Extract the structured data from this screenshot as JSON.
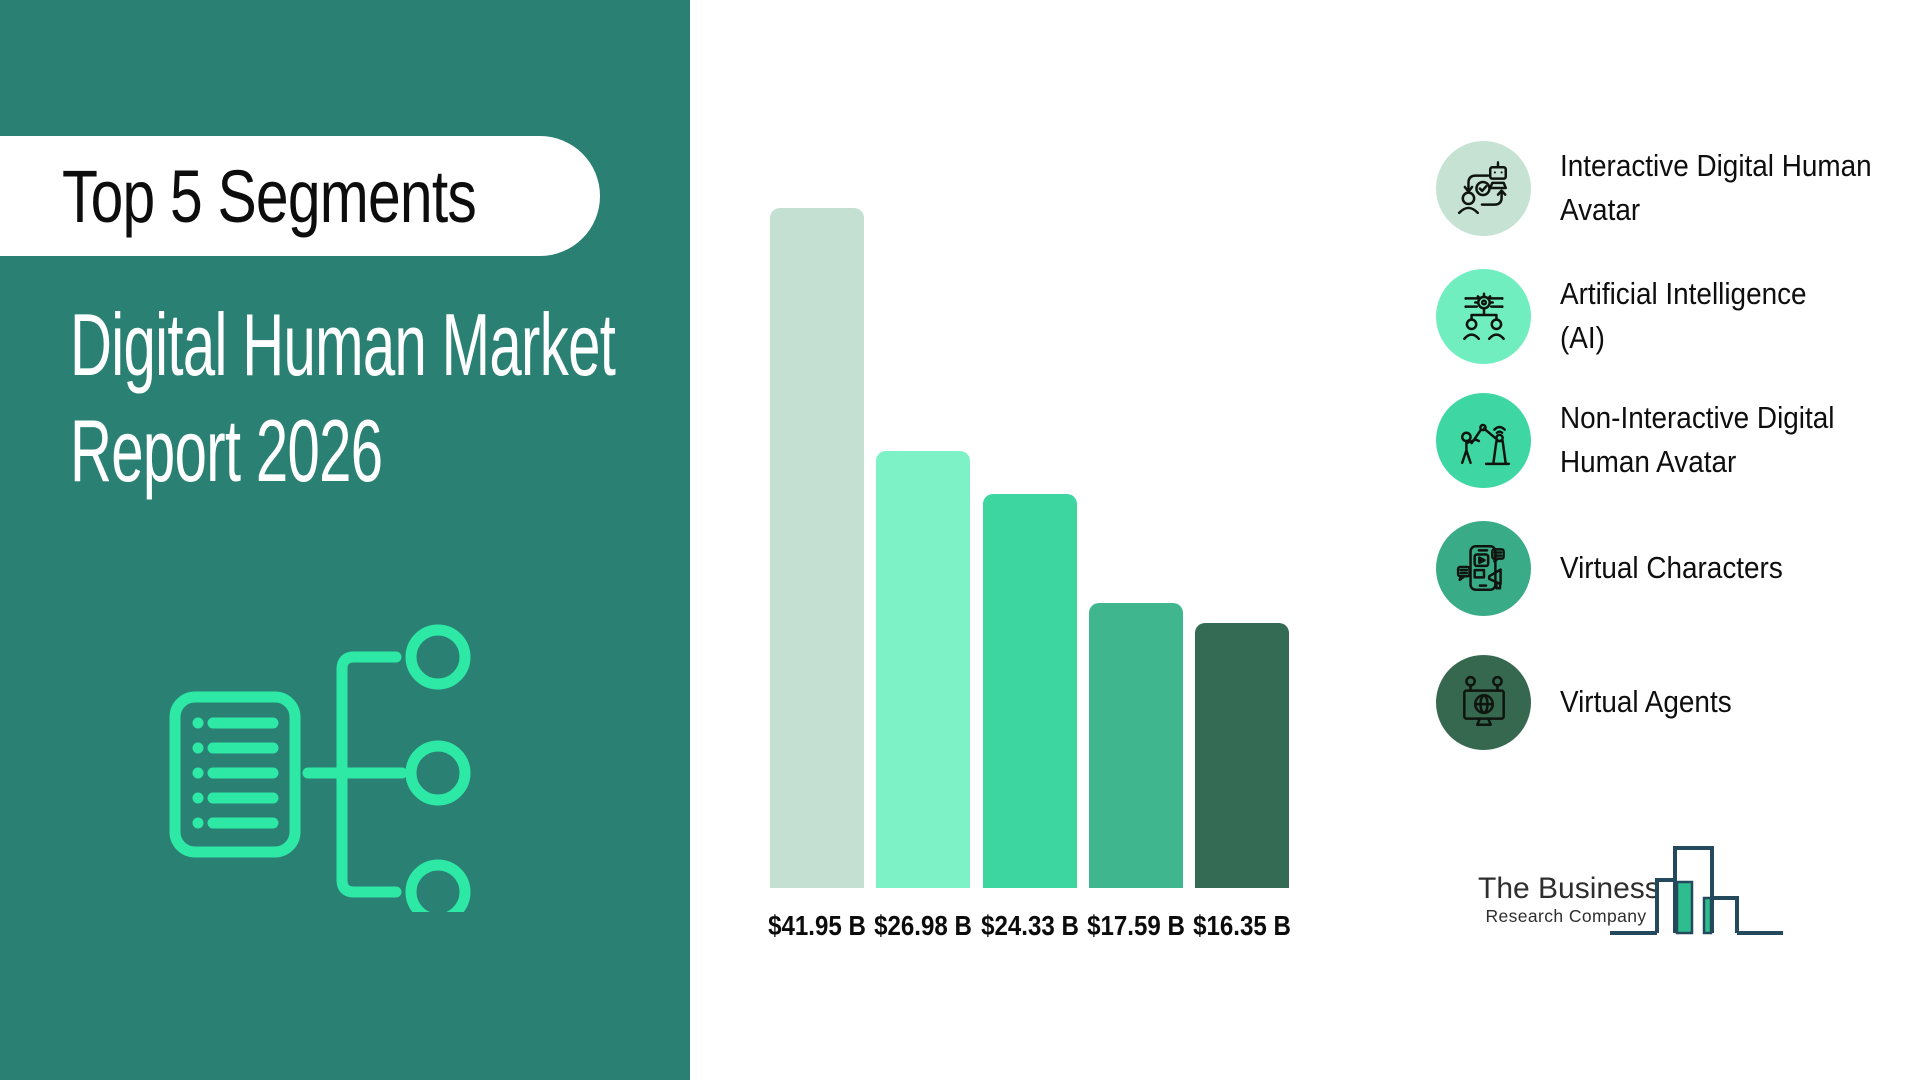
{
  "left_panel": {
    "background": "#2a8173",
    "accent": "#2ee9a6",
    "badge_label": "Top 5 Segments",
    "title_line1": "Digital Human Market",
    "title_line2": "Report 2026"
  },
  "chart_data": {
    "type": "bar",
    "title": "Top 5 Segments — Digital Human Market Report 2026",
    "unit": "USD billions",
    "categories": [
      "Interactive Digital Human Avatar",
      "Artificial Intelligence (AI)",
      "Non-Interactive Digital Human Avatar",
      "Virtual Characters",
      "Virtual Agents"
    ],
    "values": [
      41.95,
      26.98,
      24.33,
      17.59,
      16.35
    ],
    "value_labels": [
      "$41.95 B",
      "$26.98 B",
      "$24.33 B",
      "$17.59 B",
      "$16.35 B"
    ],
    "bar_colors": [
      "#c3e0d2",
      "#7df2c6",
      "#3dd5a0",
      "#40b68e",
      "#336b54"
    ],
    "ylim": [
      0,
      41.95
    ],
    "grid": false,
    "axes_shown": false,
    "legend_position": "right"
  },
  "legend": {
    "items": [
      {
        "lines": [
          "Interactive Digital Human",
          "Avatar"
        ],
        "color": "#c5e2d3",
        "icon": "human-robot-cycle-icon"
      },
      {
        "lines": [
          "Artificial Intelligence",
          "(AI)"
        ],
        "color": "#71eec0",
        "icon": "ai-network-icon"
      },
      {
        "lines": [
          "Non-Interactive Digital",
          "Human Avatar"
        ],
        "color": "#3ed6a2",
        "icon": "robotic-arm-icon"
      },
      {
        "lines": [
          "Virtual Characters"
        ],
        "color": "#3aab87",
        "icon": "smartphone-megaphone-icon"
      },
      {
        "lines": [
          "Virtual Agents"
        ],
        "color": "#36684f",
        "icon": "monitor-globe-icon"
      }
    ]
  },
  "logo": {
    "line1": "The Business",
    "line2": "Research Company",
    "mark_outline": "#25495c",
    "mark_fill": "#2ebd8e"
  }
}
